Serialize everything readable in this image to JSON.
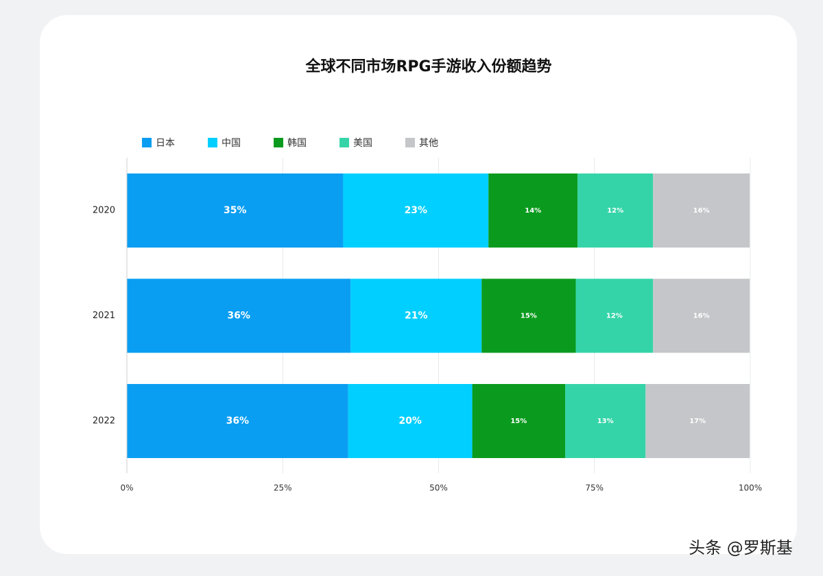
{
  "chart_data": {
    "type": "stacked-barh",
    "title": "全球不同市场RPG手游收入份额趋势",
    "categories": [
      "2020",
      "2021",
      "2022"
    ],
    "series": [
      {
        "name": "日本",
        "color": "#0a9ef2",
        "values": [
          34.7,
          35.9,
          35.5
        ],
        "value_labels": [
          "35%",
          "36%",
          "36%"
        ]
      },
      {
        "name": "中国",
        "color": "#00cfff",
        "values": [
          23.3,
          21.0,
          19.9
        ],
        "value_labels": [
          "23%",
          "21%",
          "20%"
        ]
      },
      {
        "name": "韩国",
        "color": "#0a9b1e",
        "values": [
          14.3,
          15.1,
          14.9
        ],
        "value_labels": [
          "14%",
          "15%",
          "15%"
        ]
      },
      {
        "name": "美国",
        "color": "#35d4a8",
        "values": [
          12.1,
          12.4,
          12.9
        ],
        "value_labels": [
          "12%",
          "12%",
          "13%"
        ]
      },
      {
        "name": "其他",
        "color": "#c4c6c9",
        "values": [
          15.5,
          15.5,
          16.7
        ],
        "value_labels": [
          "16%",
          "16%",
          "17%"
        ]
      }
    ],
    "xlim": [
      0,
      100
    ],
    "xticks": [
      {
        "value": 0,
        "label": "0%"
      },
      {
        "value": 25,
        "label": "25%"
      },
      {
        "value": 50,
        "label": "50%"
      },
      {
        "value": 75,
        "label": "75%"
      },
      {
        "value": 100,
        "label": "100%"
      }
    ],
    "grid": true,
    "watermark": "头条 @罗斯基"
  }
}
